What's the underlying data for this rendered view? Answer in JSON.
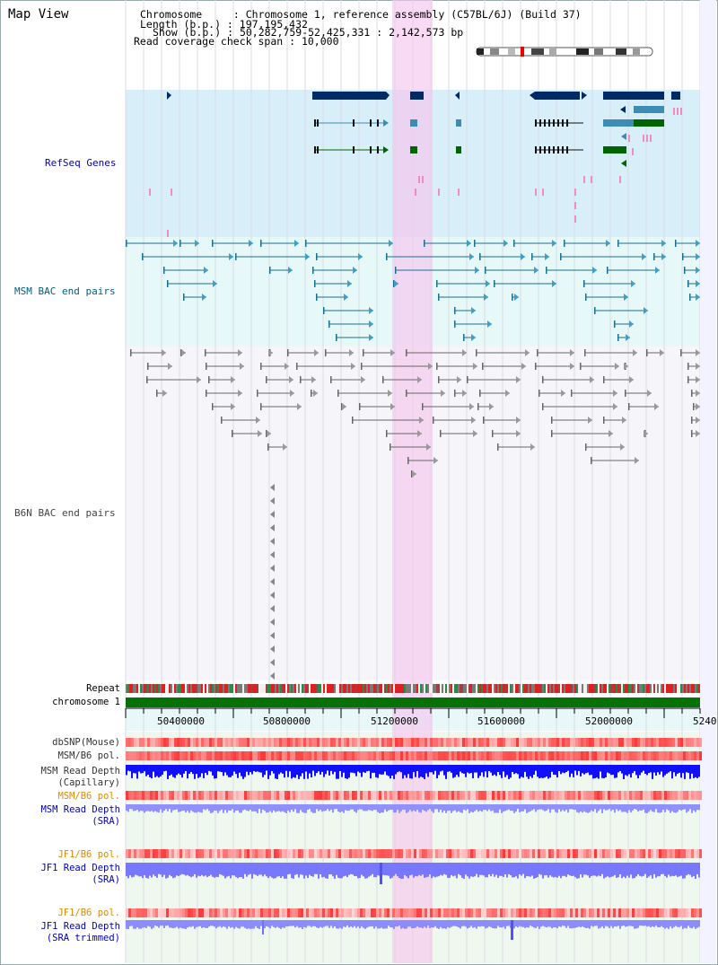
{
  "app": {
    "title": "Map View"
  },
  "info": {
    "chromosome_label": "Chromosome     :",
    "chromosome_value": "Chromosome 1, reference assembly (C57BL/6J) (Build 37)",
    "length_label": "Length (b.p.) :",
    "length_value": "197,195,432",
    "show_label": "Show (b.p.) :",
    "show_value": "50,282,759-52,425,331 : 2,142,573 bp",
    "coverage_label": "Read coverage check span :",
    "coverage_value": "10,000"
  },
  "tracks": {
    "refseq": "RefSeq Genes",
    "msm_bac": "MSM BAC end pairs",
    "b6n_bac": "B6N BAC end pairs",
    "repeat": "Repeat",
    "chromosome": "chromosome 1"
  },
  "axis": {
    "ticks": [
      "50400000",
      "50800000",
      "51200000",
      "51600000",
      "52000000",
      "5240"
    ]
  },
  "lower_tracks": {
    "dbsnp": "dbSNP(Mouse)",
    "msm_b6_pol_1": "MSM/B6 pol.",
    "msm_depth_cap_1": "MSM Read Depth",
    "msm_depth_cap_2": "(Capillary)",
    "msm_b6_pol_2": "MSM/B6 pol.",
    "msm_depth_sra_1": "MSM Read Depth",
    "msm_depth_sra_2": "(SRA)",
    "jf1_b6_pol_1": "JF1/B6 pol.",
    "jf1_depth_1": "JF1 Read Depth",
    "jf1_depth_2": "(SRA)",
    "jf1_b6_pol_2": "JF1/B6 pol.",
    "jf1_depth_trim_1": "JF1 Read Depth",
    "jf1_depth_trim_2": "(SRA trimmed)"
  },
  "colors": {
    "highlight": "#f6d6f2",
    "refseq_bg": "#d8eef8",
    "msm_bg": "#e6f8f8",
    "gene_dark": "#002a66",
    "gene_teal": "#3c8cb4",
    "gene_green": "#006400",
    "chromosome_bar": "#067106",
    "depth_blue": "#1010ff",
    "depth_light": "#7878ff",
    "label_blue": "#0000c0",
    "label_teal": "#006080",
    "label_orange": "#e08a00"
  }
}
